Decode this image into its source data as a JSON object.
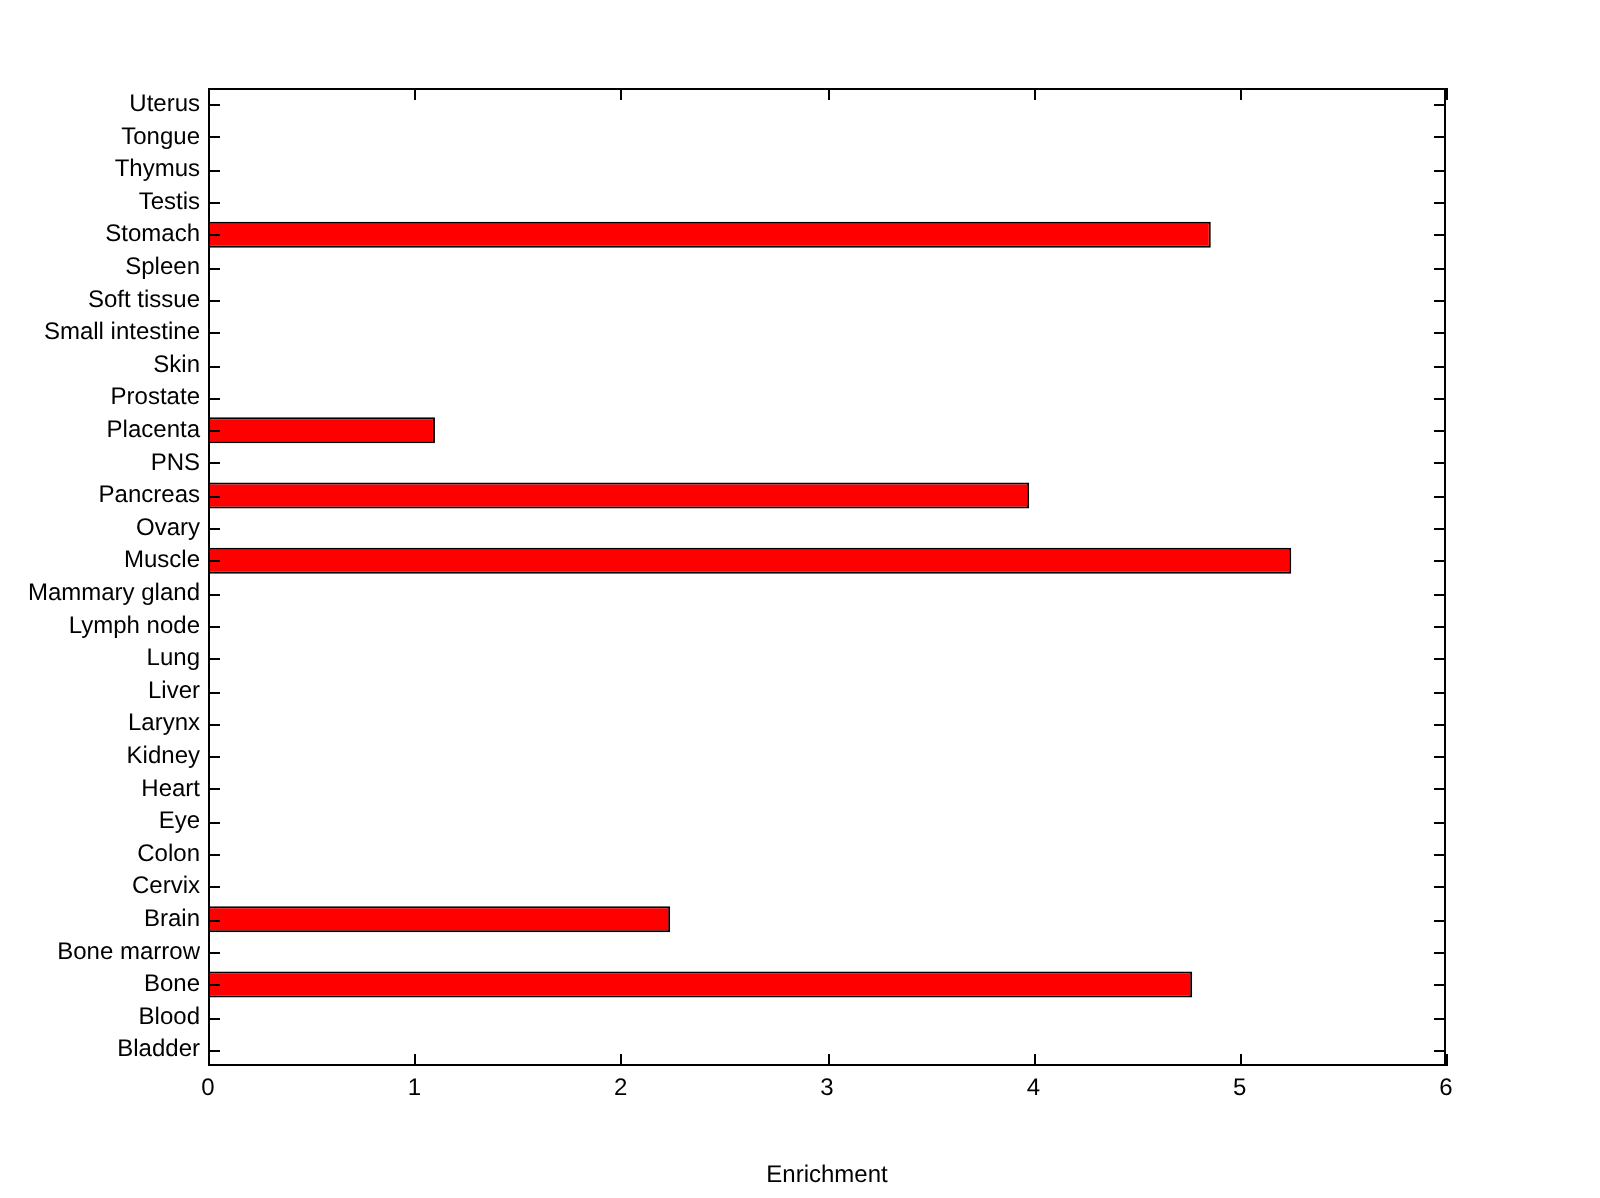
{
  "chart_data": {
    "type": "bar",
    "orientation": "horizontal",
    "xlabel": "Enrichment",
    "categories": [
      "Uterus",
      "Tongue",
      "Thymus",
      "Testis",
      "Stomach",
      "Spleen",
      "Soft tissue",
      "Small intestine",
      "Skin",
      "Prostate",
      "Placenta",
      "PNS",
      "Pancreas",
      "Ovary",
      "Muscle",
      "Mammary gland",
      "Lymph node",
      "Lung",
      "Liver",
      "Larynx",
      "Kidney",
      "Heart",
      "Eye",
      "Colon",
      "Cervix",
      "Brain",
      "Bone marrow",
      "Bone",
      "Blood",
      "Bladder"
    ],
    "values": [
      0,
      0,
      0,
      0,
      4.86,
      0,
      0,
      0,
      0,
      0,
      1.1,
      0,
      3.98,
      0,
      5.25,
      0,
      0,
      0,
      0,
      0,
      0,
      0,
      0,
      0,
      0,
      2.24,
      0,
      4.77,
      0,
      0
    ],
    "color": "#ff0000",
    "xlim": [
      0,
      6
    ],
    "xticks": [
      0,
      1,
      2,
      3,
      4,
      5,
      6
    ],
    "grid": false,
    "legend": false
  }
}
